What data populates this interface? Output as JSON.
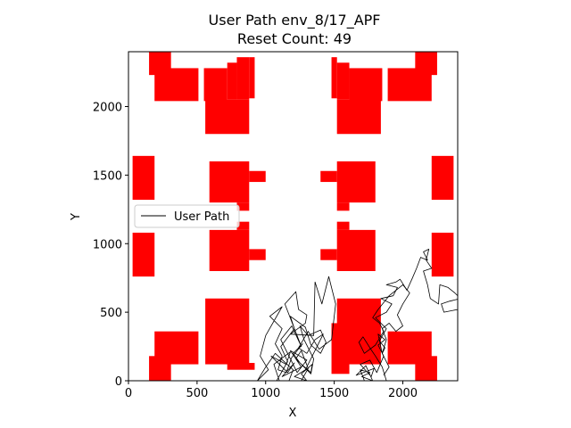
{
  "chart_data": {
    "type": "line",
    "title": "User Path env_8/17_APF",
    "subtitle": "Reset Count: 49",
    "xlabel": "X",
    "ylabel": "Y",
    "xlim": [
      0,
      2400
    ],
    "ylim": [
      0,
      2400
    ],
    "xticks": [
      0,
      500,
      1000,
      1500,
      2000
    ],
    "yticks": [
      0,
      500,
      1000,
      1500,
      2000
    ],
    "grid": false,
    "legend": {
      "placement": "center-left",
      "entries": [
        "User Path"
      ]
    },
    "obstacle_color": "#ff0000",
    "path_color": "#000000",
    "obstacles": [
      {
        "x0": 150,
        "y0": 2230,
        "x1": 310,
        "y1": 2400
      },
      {
        "x0": 190,
        "y0": 2040,
        "x1": 510,
        "y1": 2280
      },
      {
        "x0": 550,
        "y0": 2040,
        "x1": 720,
        "y1": 2280
      },
      {
        "x0": 560,
        "y0": 1800,
        "x1": 880,
        "y1": 2050
      },
      {
        "x0": 720,
        "y0": 2050,
        "x1": 790,
        "y1": 2320
      },
      {
        "x0": 790,
        "y0": 2050,
        "x1": 880,
        "y1": 2360
      },
      {
        "x0": 880,
        "y0": 2060,
        "x1": 920,
        "y1": 2360
      },
      {
        "x0": 1480,
        "y0": 2060,
        "x1": 1520,
        "y1": 2360
      },
      {
        "x0": 1520,
        "y0": 2050,
        "x1": 1610,
        "y1": 2320
      },
      {
        "x0": 1610,
        "y0": 2040,
        "x1": 1850,
        "y1": 2280
      },
      {
        "x0": 1520,
        "y0": 1800,
        "x1": 1840,
        "y1": 2050
      },
      {
        "x0": 1890,
        "y0": 2040,
        "x1": 2210,
        "y1": 2280
      },
      {
        "x0": 2090,
        "y0": 2230,
        "x1": 2250,
        "y1": 2400
      },
      {
        "x0": 30,
        "y0": 1320,
        "x1": 190,
        "y1": 1640
      },
      {
        "x0": 590,
        "y0": 1300,
        "x1": 880,
        "y1": 1600
      },
      {
        "x0": 880,
        "y0": 1450,
        "x1": 1000,
        "y1": 1530
      },
      {
        "x0": 790,
        "y0": 1240,
        "x1": 880,
        "y1": 1300
      },
      {
        "x0": 1400,
        "y0": 1450,
        "x1": 1520,
        "y1": 1530
      },
      {
        "x0": 1520,
        "y0": 1300,
        "x1": 1800,
        "y1": 1600
      },
      {
        "x0": 1520,
        "y0": 1240,
        "x1": 1610,
        "y1": 1300
      },
      {
        "x0": 2210,
        "y0": 1320,
        "x1": 2370,
        "y1": 1640
      },
      {
        "x0": 30,
        "y0": 760,
        "x1": 190,
        "y1": 1080
      },
      {
        "x0": 590,
        "y0": 800,
        "x1": 880,
        "y1": 1100
      },
      {
        "x0": 880,
        "y0": 880,
        "x1": 1000,
        "y1": 960
      },
      {
        "x0": 790,
        "y0": 1100,
        "x1": 880,
        "y1": 1160
      },
      {
        "x0": 1400,
        "y0": 880,
        "x1": 1520,
        "y1": 960
      },
      {
        "x0": 1520,
        "y0": 800,
        "x1": 1800,
        "y1": 1100
      },
      {
        "x0": 1520,
        "y0": 1100,
        "x1": 1610,
        "y1": 1160
      },
      {
        "x0": 2210,
        "y0": 760,
        "x1": 2370,
        "y1": 1080
      },
      {
        "x0": 560,
        "y0": 120,
        "x1": 880,
        "y1": 600
      },
      {
        "x0": 720,
        "y0": 80,
        "x1": 920,
        "y1": 130
      },
      {
        "x0": 190,
        "y0": 120,
        "x1": 510,
        "y1": 360
      },
      {
        "x0": 150,
        "y0": 0,
        "x1": 310,
        "y1": 180
      },
      {
        "x0": 1480,
        "y0": 50,
        "x1": 1610,
        "y1": 420
      },
      {
        "x0": 1520,
        "y0": 120,
        "x1": 1840,
        "y1": 600
      },
      {
        "x0": 1890,
        "y0": 120,
        "x1": 2210,
        "y1": 360
      },
      {
        "x0": 2090,
        "y0": 0,
        "x1": 2250,
        "y1": 180
      }
    ],
    "path": [
      [
        1100,
        0
      ],
      [
        1060,
        120
      ],
      [
        1180,
        210
      ],
      [
        1150,
        120
      ],
      [
        1040,
        180
      ],
      [
        1160,
        60
      ],
      [
        1210,
        130
      ],
      [
        1120,
        30
      ],
      [
        1260,
        100
      ],
      [
        1180,
        220
      ],
      [
        1300,
        150
      ],
      [
        1230,
        60
      ],
      [
        1110,
        300
      ],
      [
        1190,
        400
      ],
      [
        1260,
        250
      ],
      [
        1140,
        560
      ],
      [
        1220,
        650
      ],
      [
        1240,
        520
      ],
      [
        1300,
        480
      ],
      [
        1290,
        420
      ],
      [
        1180,
        340
      ],
      [
        1350,
        330
      ],
      [
        1360,
        720
      ],
      [
        1410,
        560
      ],
      [
        1460,
        760
      ],
      [
        1510,
        560
      ],
      [
        1480,
        300
      ],
      [
        1390,
        230
      ],
      [
        1310,
        360
      ],
      [
        1240,
        240
      ],
      [
        1300,
        200
      ],
      [
        1360,
        300
      ],
      [
        1420,
        340
      ],
      [
        1290,
        80
      ],
      [
        1210,
        30
      ],
      [
        1300,
        0
      ],
      [
        1260,
        50
      ],
      [
        1340,
        120
      ],
      [
        1330,
        60
      ],
      [
        1250,
        130
      ],
      [
        1200,
        200
      ],
      [
        1270,
        270
      ],
      [
        1190,
        170
      ],
      [
        1150,
        60
      ],
      [
        1090,
        80
      ],
      [
        1120,
        180
      ],
      [
        1070,
        270
      ],
      [
        1120,
        380
      ],
      [
        1030,
        470
      ],
      [
        1120,
        540
      ],
      [
        1000,
        330
      ],
      [
        960,
        180
      ],
      [
        1020,
        80
      ],
      [
        940,
        0
      ],
      [
        1000,
        100
      ],
      [
        1070,
        200
      ],
      [
        1200,
        80
      ],
      [
        1170,
        0
      ],
      [
        1260,
        0
      ],
      [
        1310,
        90
      ],
      [
        1260,
        220
      ],
      [
        1220,
        160
      ],
      [
        1330,
        50
      ],
      [
        1350,
        160
      ],
      [
        1280,
        300
      ],
      [
        1250,
        400
      ],
      [
        1310,
        330
      ],
      [
        1400,
        370
      ],
      [
        1440,
        280
      ],
      [
        1400,
        200
      ],
      [
        1330,
        260
      ],
      [
        1290,
        390
      ],
      [
        1180,
        470
      ],
      [
        1210,
        380
      ],
      [
        1110,
        250
      ],
      [
        1160,
        140
      ],
      [
        1080,
        0
      ]
    ],
    "path2": [
      [
        1720,
        0
      ],
      [
        1690,
        80
      ],
      [
        1760,
        60
      ],
      [
        1700,
        30
      ],
      [
        1780,
        0
      ],
      [
        1730,
        110
      ],
      [
        1660,
        40
      ],
      [
        1790,
        90
      ],
      [
        1770,
        30
      ],
      [
        1690,
        120
      ],
      [
        1760,
        150
      ],
      [
        1810,
        60
      ],
      [
        1860,
        180
      ],
      [
        1820,
        260
      ],
      [
        1870,
        300
      ],
      [
        1820,
        340
      ],
      [
        1850,
        200
      ],
      [
        1870,
        240
      ],
      [
        1830,
        290
      ],
      [
        1880,
        380
      ],
      [
        1800,
        460
      ],
      [
        1880,
        500
      ],
      [
        1920,
        560
      ],
      [
        1840,
        600
      ],
      [
        1930,
        620
      ],
      [
        1960,
        680
      ],
      [
        1880,
        700
      ],
      [
        1950,
        720
      ],
      [
        1980,
        740
      ],
      [
        2030,
        660
      ],
      [
        2070,
        750
      ],
      [
        2100,
        820
      ],
      [
        2130,
        900
      ],
      [
        2180,
        880
      ],
      [
        2150,
        940
      ],
      [
        2190,
        960
      ],
      [
        2170,
        880
      ],
      [
        2210,
        820
      ],
      [
        2150,
        800
      ],
      [
        2180,
        700
      ],
      [
        2200,
        600
      ],
      [
        2260,
        560
      ],
      [
        2270,
        700
      ],
      [
        2330,
        680
      ],
      [
        2380,
        640
      ],
      [
        2420,
        600
      ],
      [
        2340,
        580
      ],
      [
        2280,
        560
      ],
      [
        2300,
        500
      ],
      [
        2400,
        520
      ]
    ],
    "path3": [
      [
        1880,
        0
      ],
      [
        1850,
        100
      ],
      [
        1800,
        180
      ],
      [
        1760,
        240
      ],
      [
        1710,
        320
      ],
      [
        1680,
        280
      ],
      [
        1720,
        200
      ],
      [
        1800,
        260
      ],
      [
        1860,
        360
      ],
      [
        1830,
        420
      ],
      [
        1780,
        460
      ],
      [
        1820,
        520
      ],
      [
        1900,
        620
      ],
      [
        2000,
        700
      ],
      [
        2050,
        640
      ],
      [
        2000,
        560
      ],
      [
        1960,
        480
      ],
      [
        2000,
        400
      ],
      [
        1950,
        360
      ],
      [
        1900,
        420
      ],
      [
        1850,
        380
      ],
      [
        1880,
        300
      ],
      [
        1850,
        200
      ],
      [
        1900,
        100
      ],
      [
        1860,
        40
      ]
    ]
  }
}
